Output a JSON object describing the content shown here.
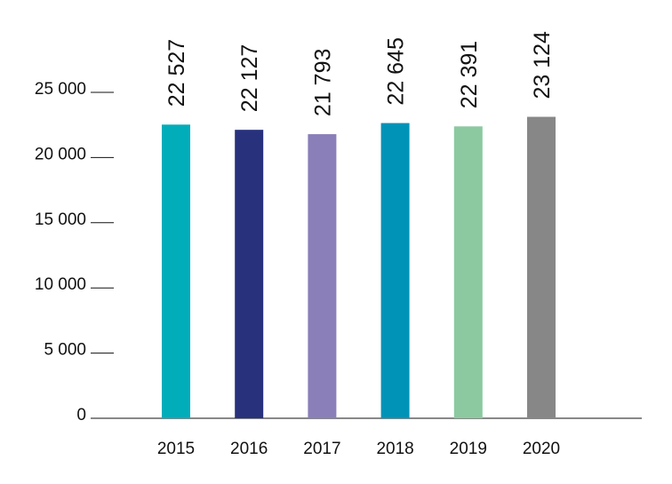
{
  "chart_data": {
    "type": "bar",
    "title": "",
    "xlabel": "",
    "ylabel": "",
    "categories": [
      "2015",
      "2016",
      "2017",
      "2018",
      "2019",
      "2020"
    ],
    "values": [
      22527,
      22127,
      21793,
      22645,
      22391,
      23124
    ],
    "value_labels": [
      "22 527",
      "22 127",
      "21 793",
      "22 645",
      "22 391",
      "23 124"
    ],
    "colors": [
      "#00adb9",
      "#27317c",
      "#8a7fb8",
      "#0093b8",
      "#8cc9a0",
      "#878787"
    ],
    "ylim": [
      0,
      25000
    ],
    "yticks": [
      0,
      5000,
      10000,
      15000,
      20000,
      25000
    ],
    "ytick_labels": [
      "0",
      "5 000",
      "10 000",
      "15 000",
      "20 000",
      "25 000"
    ],
    "grid": false,
    "legend": "none"
  }
}
